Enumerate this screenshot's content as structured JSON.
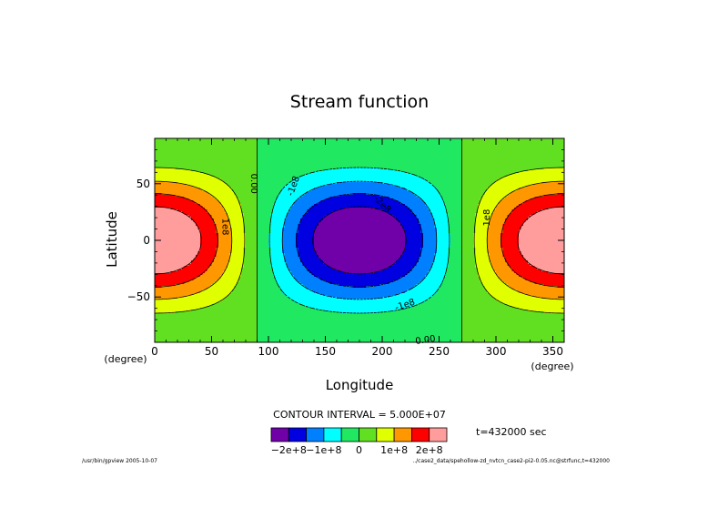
{
  "chart_data": {
    "type": "contour",
    "title": "Stream function",
    "xlabel": "Longitude",
    "ylabel": "Latitude",
    "x_units": "(degree)",
    "y_units": "(degree)",
    "xlim": [
      0,
      360
    ],
    "ylim": [
      -90,
      90
    ],
    "xticks": [
      "0",
      "50",
      "100",
      "150",
      "200",
      "250",
      "300",
      "350"
    ],
    "xtick_values": [
      0,
      50,
      100,
      150,
      200,
      250,
      300,
      350
    ],
    "yticks": [
      "50",
      "0",
      "−50"
    ],
    "ytick_values": [
      50,
      0,
      -50
    ],
    "contour_interval_text": "CONTOUR INTERVAL = 5.000E+07",
    "time_text": "t=432000 sec",
    "contour_labels": [
      {
        "text": "0.00",
        "lon": 87,
        "lat": 50,
        "rotate": 90
      },
      {
        "text": "1e8",
        "lon": 62,
        "lat": 12,
        "rotate": 90
      },
      {
        "text": "1e8",
        "lon": 292,
        "lat": 20,
        "rotate": -90
      },
      {
        "text": "-1e8",
        "lon": 122,
        "lat": 48,
        "rotate": -70
      },
      {
        "text": "-2e8",
        "lon": 200,
        "lat": 32,
        "rotate": 45
      },
      {
        "text": "-1e8",
        "lon": 220,
        "lat": -57,
        "rotate": -18
      },
      {
        "text": "0.00",
        "lon": 238,
        "lat": -88,
        "rotate": -8
      }
    ],
    "levels": [
      {
        "range": "< -2e8",
        "color": "#7000a8"
      },
      {
        "range": "-2e8 to -1.5e8",
        "color": "#0000e0"
      },
      {
        "range": "-1.5e8 to -1e8",
        "color": "#0080ff"
      },
      {
        "range": "-1e8 to -5e7",
        "color": "#00ffff"
      },
      {
        "range": "-5e7 to 0",
        "color": "#20e860"
      },
      {
        "range": "0 to 5e7",
        "color": "#60e020"
      },
      {
        "range": "5e7 to 1e8",
        "color": "#e0ff00"
      },
      {
        "range": "1e8 to 1.5e8",
        "color": "#ff9800"
      },
      {
        "range": "1.5e8 to 2e8",
        "color": "#ff0000"
      },
      {
        "range": "> 2e8",
        "color": "#ff9c9c"
      }
    ],
    "colorbar_labels": [
      "−2e+8",
      "−1e+8",
      "0",
      "1e+8",
      "2e+8"
    ],
    "colorbar_label_values": [
      -200000000.0,
      -100000000.0,
      0,
      100000000.0,
      200000000.0
    ]
  },
  "footer": {
    "left": "/usr/bin/gpview  2005-10-07",
    "right": "../case2_data/spehollow-zd_nvtcn_case2-pi2-0.05.nc@strfunc,t=432000"
  }
}
